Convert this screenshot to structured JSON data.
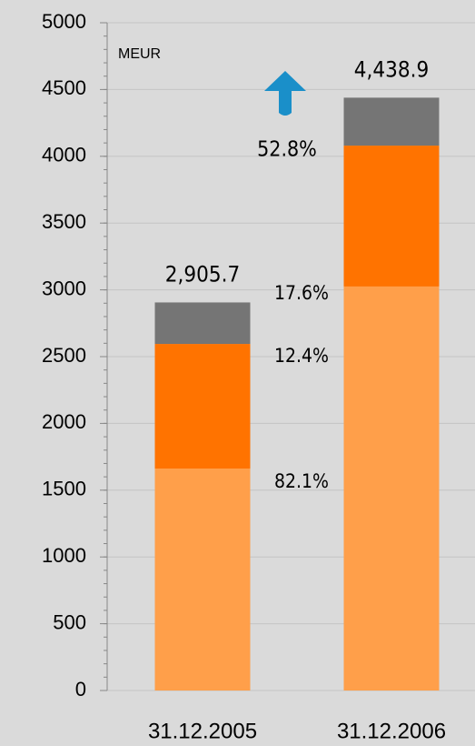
{
  "chart_data": {
    "type": "stacked_bar",
    "categories": [
      "31.12.2005",
      "31.12.2006"
    ],
    "series": [
      {
        "color": "#ff9f4a",
        "values": [
          1662,
          3025
        ]
      },
      {
        "color": "#ff7300",
        "values": [
          933,
          1055
        ]
      },
      {
        "color": "#757575",
        "values": [
          310.7,
          358.9
        ]
      }
    ],
    "totals": [
      2905.7,
      4438.9
    ],
    "total_labels": [
      "2,905.7",
      "4,438.9"
    ],
    "annotations": [
      "MEUR",
      "52.8%",
      "17.6%",
      "12.4%",
      "82.1%"
    ],
    "ylim": [
      0,
      5000
    ],
    "yticks": [
      0,
      500,
      1000,
      1500,
      2000,
      2500,
      3000,
      3500,
      4000,
      4500,
      5000
    ],
    "grid": true
  }
}
